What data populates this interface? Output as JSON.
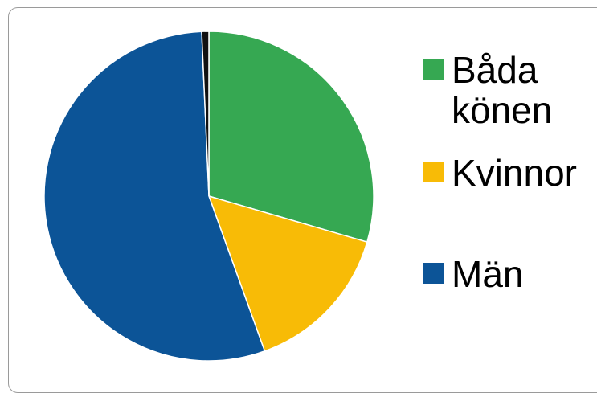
{
  "chart_data": {
    "type": "pie",
    "title": "",
    "slices": [
      {
        "label": "Båda könen",
        "value": 29.5,
        "color": "#36a852"
      },
      {
        "label": "Kvinnor",
        "value": 15.0,
        "color": "#f8bb06"
      },
      {
        "label": "Män",
        "value": 54.8,
        "color": "#0c5497"
      },
      {
        "label": "",
        "value": 0.7,
        "color": "#111111"
      }
    ],
    "legend": {
      "placement": "right",
      "items": [
        {
          "label": "Båda könen",
          "color": "#36a852"
        },
        {
          "label": "Kvinnor",
          "color": "#f8bb06"
        },
        {
          "label": "Män",
          "color": "#0c5497"
        }
      ]
    }
  }
}
